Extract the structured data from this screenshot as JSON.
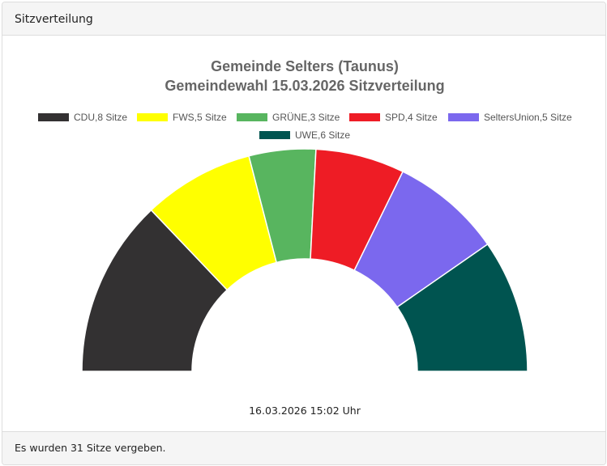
{
  "card": {
    "header": "Sitzverteilung",
    "footer": "Es wurden 31 Sitze vergeben.",
    "timestamp": "16.03.2026 15:02 Uhr"
  },
  "chart_data": {
    "type": "pie",
    "variant": "half-donut",
    "title": [
      "Gemeinde Selters (Taunus)",
      "Gemeindewahl 15.03.2026 Sitzverteilung"
    ],
    "legend_position": "top",
    "series": [
      {
        "name": "CDU",
        "value": 8,
        "label": "CDU,8 Sitze",
        "color": "#333132"
      },
      {
        "name": "FWS",
        "value": 5,
        "label": "FWS,5 Sitze",
        "color": "#ffff00"
      },
      {
        "name": "GRÜNE",
        "value": 3,
        "label": "GRÜNE,3 Sitze",
        "color": "#58b55f"
      },
      {
        "name": "SPD",
        "value": 4,
        "label": "SPD,4 Sitze",
        "color": "#ee1c25"
      },
      {
        "name": "SeltersUnion",
        "value": 5,
        "label": "SeltersUnion,5 Sitze",
        "color": "#7b68ee"
      },
      {
        "name": "UWE",
        "value": 6,
        "label": "UWE,6 Sitze",
        "color": "#005450"
      }
    ]
  }
}
